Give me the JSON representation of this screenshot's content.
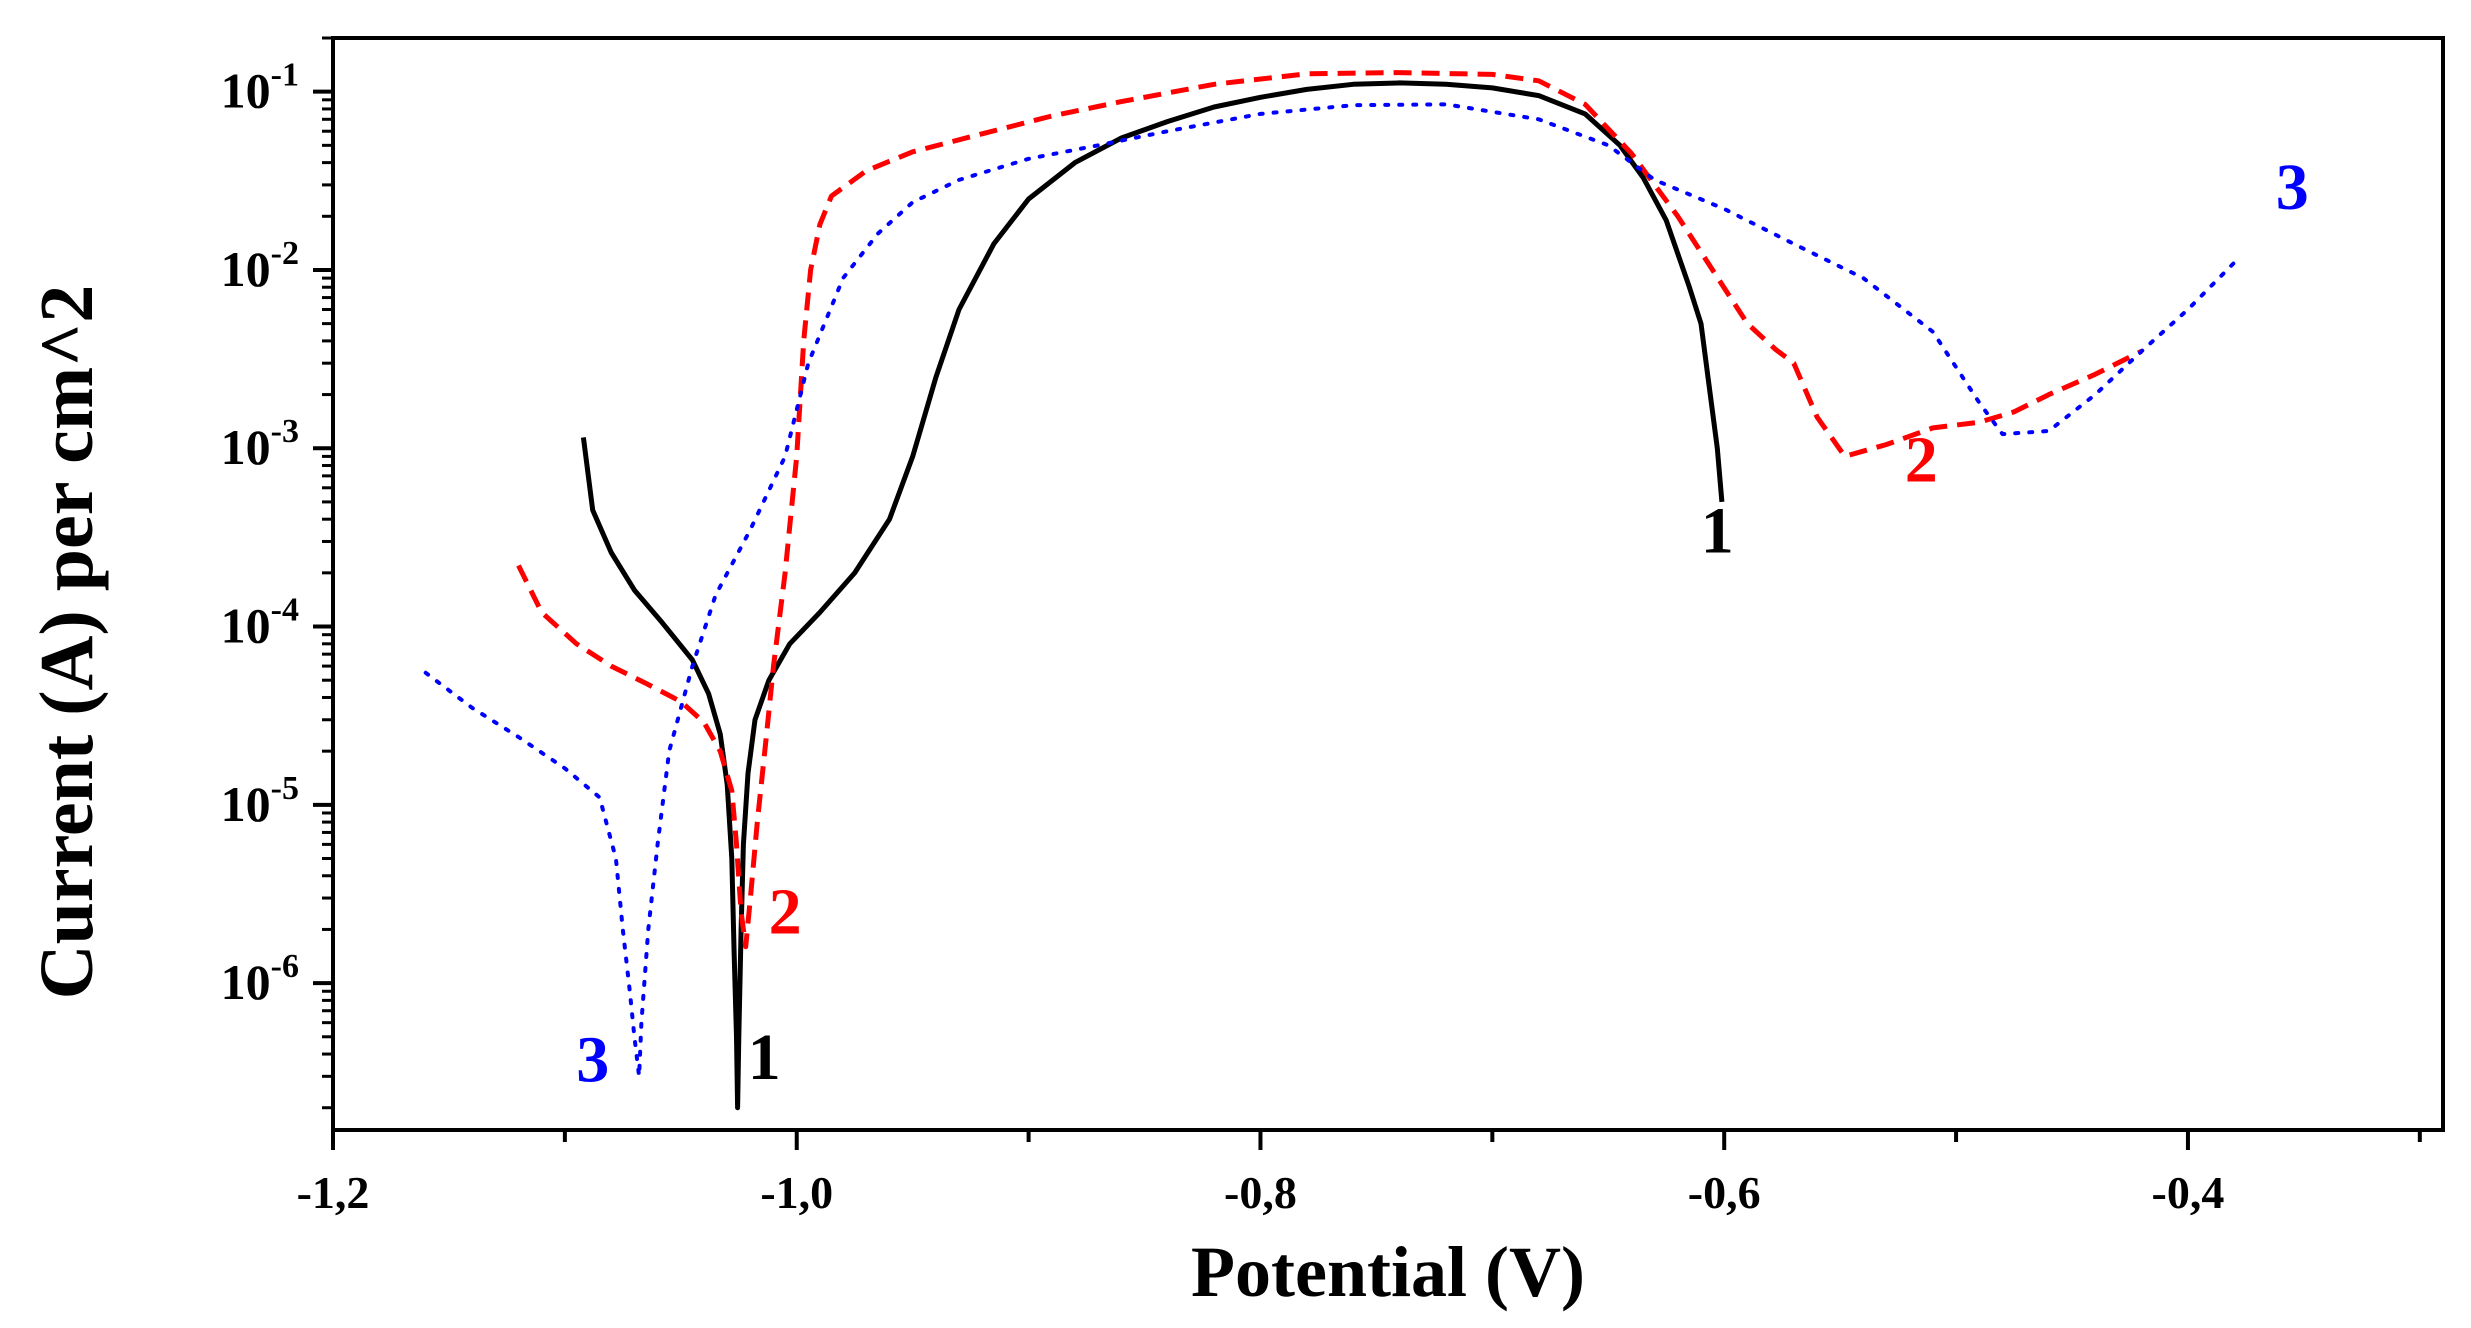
{
  "chart_data": {
    "type": "line",
    "title": "",
    "xlabel": "Potential (V)",
    "ylabel": "Current (A) per cm^2",
    "x_scale": "linear",
    "y_scale": "log",
    "xlim": [
      -1.2,
      -0.29
    ],
    "ylim": [
      1.5e-07,
      0.2
    ],
    "x_ticks": [
      {
        "value": -1.2,
        "label": "-1,2"
      },
      {
        "value": -1.0,
        "label": "-1,0"
      },
      {
        "value": -0.8,
        "label": "-0,8"
      },
      {
        "value": -0.6,
        "label": "-0,6"
      },
      {
        "value": -0.4,
        "label": "-0,4"
      }
    ],
    "x_minor_ticks": [
      -1.1,
      -0.9,
      -0.7,
      -0.5,
      -0.3
    ],
    "y_ticks": [
      {
        "value": 1e-06,
        "base": "10",
        "exp": "-6"
      },
      {
        "value": 1e-05,
        "base": "10",
        "exp": "-5"
      },
      {
        "value": 0.0001,
        "base": "10",
        "exp": "-4"
      },
      {
        "value": 0.001,
        "base": "10",
        "exp": "-3"
      },
      {
        "value": 0.01,
        "base": "10",
        "exp": "-2"
      },
      {
        "value": 0.1,
        "base": "10",
        "exp": "-1"
      }
    ],
    "series": [
      {
        "name": "1",
        "color": "#000000",
        "style": "solid",
        "points": [
          [
            -1.092,
            0.00115
          ],
          [
            -1.088,
            0.00045
          ],
          [
            -1.08,
            0.00026
          ],
          [
            -1.07,
            0.00016
          ],
          [
            -1.058,
            0.000105
          ],
          [
            -1.045,
            6.5e-05
          ],
          [
            -1.038,
            4.2e-05
          ],
          [
            -1.033,
            2.5e-05
          ],
          [
            -1.03,
            1.3e-05
          ],
          [
            -1.028,
            5e-06
          ],
          [
            -1.027,
            1.5e-06
          ],
          [
            -1.026,
            5e-07
          ],
          [
            -1.0255,
            2e-07
          ],
          [
            -1.025,
            5e-07
          ],
          [
            -1.024,
            2e-06
          ],
          [
            -1.023,
            6e-06
          ],
          [
            -1.021,
            1.5e-05
          ],
          [
            -1.018,
            3e-05
          ],
          [
            -1.012,
            5e-05
          ],
          [
            -1.003,
            8e-05
          ],
          [
            -0.99,
            0.00012
          ],
          [
            -0.975,
            0.0002
          ],
          [
            -0.96,
            0.0004
          ],
          [
            -0.95,
            0.0009
          ],
          [
            -0.94,
            0.0025
          ],
          [
            -0.93,
            0.006
          ],
          [
            -0.915,
            0.014
          ],
          [
            -0.9,
            0.025
          ],
          [
            -0.88,
            0.04
          ],
          [
            -0.86,
            0.055
          ],
          [
            -0.84,
            0.068
          ],
          [
            -0.82,
            0.082
          ],
          [
            -0.8,
            0.093
          ],
          [
            -0.78,
            0.103
          ],
          [
            -0.76,
            0.11
          ],
          [
            -0.74,
            0.112
          ],
          [
            -0.72,
            0.11
          ],
          [
            -0.7,
            0.105
          ],
          [
            -0.68,
            0.095
          ],
          [
            -0.66,
            0.075
          ],
          [
            -0.645,
            0.05
          ],
          [
            -0.635,
            0.033
          ],
          [
            -0.625,
            0.019
          ],
          [
            -0.615,
            0.008
          ],
          [
            -0.61,
            0.005
          ],
          [
            -0.607,
            0.0025
          ],
          [
            -0.603,
            0.001
          ],
          [
            -0.601,
            0.0005
          ]
        ]
      },
      {
        "name": "2",
        "color": "#ff0000",
        "style": "dashed",
        "points": [
          [
            -1.12,
            0.00022
          ],
          [
            -1.11,
            0.00012
          ],
          [
            -1.095,
            8e-05
          ],
          [
            -1.08,
            6e-05
          ],
          [
            -1.065,
            4.8e-05
          ],
          [
            -1.05,
            3.8e-05
          ],
          [
            -1.04,
            2.9e-05
          ],
          [
            -1.033,
            2e-05
          ],
          [
            -1.028,
            1.2e-05
          ],
          [
            -1.026,
            6e-06
          ],
          [
            -1.024,
            2.5e-06
          ],
          [
            -1.022,
            1.6e-06
          ],
          [
            -1.02,
            3e-06
          ],
          [
            -1.017,
            8e-06
          ],
          [
            -1.013,
            2.5e-05
          ],
          [
            -1.01,
            6e-05
          ],
          [
            -1.005,
            0.0002
          ],
          [
            -1.0,
            0.0009
          ],
          [
            -0.997,
            0.004
          ],
          [
            -0.994,
            0.01
          ],
          [
            -0.99,
            0.018
          ],
          [
            -0.985,
            0.026
          ],
          [
            -0.97,
            0.036
          ],
          [
            -0.95,
            0.046
          ],
          [
            -0.92,
            0.058
          ],
          [
            -0.89,
            0.073
          ],
          [
            -0.86,
            0.088
          ],
          [
            -0.82,
            0.11
          ],
          [
            -0.78,
            0.126
          ],
          [
            -0.74,
            0.128
          ],
          [
            -0.7,
            0.125
          ],
          [
            -0.68,
            0.115
          ],
          [
            -0.66,
            0.085
          ],
          [
            -0.64,
            0.045
          ],
          [
            -0.62,
            0.02
          ],
          [
            -0.605,
            0.01
          ],
          [
            -0.59,
            0.005
          ],
          [
            -0.578,
            0.0036
          ],
          [
            -0.57,
            0.003
          ],
          [
            -0.56,
            0.0015
          ],
          [
            -0.548,
            0.0009
          ],
          [
            -0.53,
            0.00105
          ],
          [
            -0.51,
            0.0013
          ],
          [
            -0.49,
            0.0014
          ],
          [
            -0.475,
            0.0016
          ],
          [
            -0.46,
            0.002
          ],
          [
            -0.44,
            0.0026
          ],
          [
            -0.42,
            0.0035
          ]
        ]
      },
      {
        "name": "3",
        "color": "#0000ff",
        "style": "dotted",
        "points": [
          [
            -1.16,
            5.5e-05
          ],
          [
            -1.14,
            3.5e-05
          ],
          [
            -1.12,
            2.4e-05
          ],
          [
            -1.1,
            1.6e-05
          ],
          [
            -1.085,
            1.1e-05
          ],
          [
            -1.078,
            5e-06
          ],
          [
            -1.075,
            2e-06
          ],
          [
            -1.072,
            9e-07
          ],
          [
            -1.07,
            5e-07
          ],
          [
            -1.068,
            3e-07
          ],
          [
            -1.067,
            6e-07
          ],
          [
            -1.064,
            2e-06
          ],
          [
            -1.06,
            6e-06
          ],
          [
            -1.055,
            2e-05
          ],
          [
            -1.045,
            6e-05
          ],
          [
            -1.035,
            0.00015
          ],
          [
            -1.02,
            0.00035
          ],
          [
            -1.005,
            0.0009
          ],
          [
            -0.995,
            0.003
          ],
          [
            -0.98,
            0.009
          ],
          [
            -0.965,
            0.016
          ],
          [
            -0.95,
            0.024
          ],
          [
            -0.93,
            0.032
          ],
          [
            -0.9,
            0.042
          ],
          [
            -0.87,
            0.05
          ],
          [
            -0.84,
            0.06
          ],
          [
            -0.8,
            0.075
          ],
          [
            -0.76,
            0.084
          ],
          [
            -0.72,
            0.085
          ],
          [
            -0.68,
            0.07
          ],
          [
            -0.65,
            0.05
          ],
          [
            -0.63,
            0.032
          ],
          [
            -0.6,
            0.022
          ],
          [
            -0.57,
            0.014
          ],
          [
            -0.54,
            0.009
          ],
          [
            -0.51,
            0.0045
          ],
          [
            -0.49,
            0.0018
          ],
          [
            -0.48,
            0.0012
          ],
          [
            -0.46,
            0.00125
          ],
          [
            -0.44,
            0.002
          ],
          [
            -0.42,
            0.0035
          ],
          [
            -0.4,
            0.006
          ],
          [
            -0.38,
            0.011
          ]
        ]
      }
    ],
    "annotations": [
      {
        "text": "1",
        "series": "1",
        "x": -1.014,
        "y": 2.9e-07,
        "color": "#000000"
      },
      {
        "text": "1",
        "series": "1",
        "x": -0.603,
        "y": 0.00026,
        "color": "#000000"
      },
      {
        "text": "2",
        "series": "2",
        "x": -1.005,
        "y": 1.9e-06,
        "color": "#ff0000"
      },
      {
        "text": "2",
        "series": "2",
        "x": -0.515,
        "y": 0.00065,
        "color": "#ff0000"
      },
      {
        "text": "3",
        "series": "3",
        "x": -1.088,
        "y": 2.8e-07,
        "color": "#0000ff"
      },
      {
        "text": "3",
        "series": "3",
        "x": -0.355,
        "y": 0.022,
        "color": "#0000ff"
      }
    ]
  }
}
